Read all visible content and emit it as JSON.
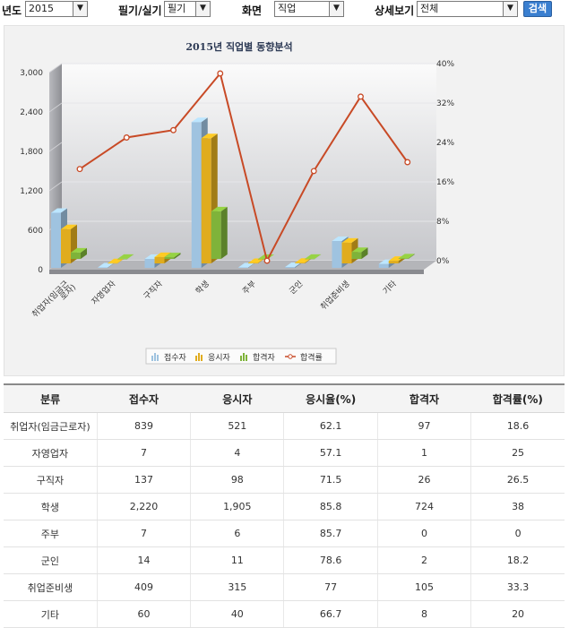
{
  "filters": {
    "year": {
      "label": "년도",
      "value": "2015"
    },
    "exam": {
      "label": "필기/실기",
      "value": "필기"
    },
    "view": {
      "label": "화면",
      "value": "직업"
    },
    "detail": {
      "label": "상세보기",
      "value": "전체"
    },
    "search_label": "검색"
  },
  "chart_data": {
    "type": "bar",
    "title": "2015년 직업별 동향분석",
    "categories": [
      "취업자(임금근로자)",
      "자영업자",
      "구직자",
      "학생",
      "주부",
      "군인",
      "취업준비생",
      "기타"
    ],
    "series": [
      {
        "name": "접수자",
        "type": "bar",
        "axis": "left",
        "color": "#9fc3e0",
        "values": [
          839,
          7,
          137,
          2220,
          7,
          14,
          409,
          60
        ]
      },
      {
        "name": "응시자",
        "type": "bar",
        "axis": "left",
        "color": "#e0ac1e",
        "values": [
          521,
          4,
          98,
          1905,
          6,
          11,
          315,
          40
        ]
      },
      {
        "name": "합격자",
        "type": "bar",
        "axis": "left",
        "color": "#7fb33a",
        "values": [
          97,
          1,
          26,
          724,
          0,
          2,
          105,
          8
        ]
      },
      {
        "name": "합격률",
        "type": "line",
        "axis": "right",
        "color": "#c84a26",
        "values": [
          18.6,
          25,
          26.5,
          38,
          0,
          18.2,
          33.3,
          20
        ]
      }
    ],
    "left_axis": {
      "ticks": [
        "0",
        "600",
        "1,200",
        "1,800",
        "2,400",
        "3,000"
      ],
      "range": [
        0,
        3000
      ]
    },
    "right_axis": {
      "ticks": [
        "0%",
        "8%",
        "16%",
        "24%",
        "32%",
        "40%"
      ],
      "range": [
        0,
        40
      ]
    },
    "grid": true,
    "legend": "bottom-center"
  },
  "table": {
    "headers": [
      "분류",
      "접수자",
      "응시자",
      "응시율(%)",
      "합격자",
      "합격률(%)"
    ],
    "rows": [
      [
        "취업자(임금근로자)",
        "839",
        "521",
        "62.1",
        "97",
        "18.6"
      ],
      [
        "자영업자",
        "7",
        "4",
        "57.1",
        "1",
        "25"
      ],
      [
        "구직자",
        "137",
        "98",
        "71.5",
        "26",
        "26.5"
      ],
      [
        "학생",
        "2,220",
        "1,905",
        "85.8",
        "724",
        "38"
      ],
      [
        "주부",
        "7",
        "6",
        "85.7",
        "0",
        "0"
      ],
      [
        "군인",
        "14",
        "11",
        "78.6",
        "2",
        "18.2"
      ],
      [
        "취업준비생",
        "409",
        "315",
        "77",
        "105",
        "33.3"
      ],
      [
        "기타",
        "60",
        "40",
        "66.7",
        "8",
        "20"
      ]
    ]
  }
}
